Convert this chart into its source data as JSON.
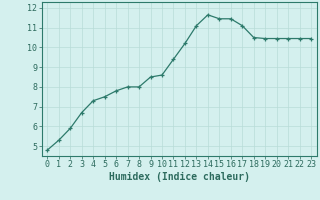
{
  "x": [
    0,
    1,
    2,
    3,
    4,
    5,
    6,
    7,
    8,
    9,
    10,
    11,
    12,
    13,
    14,
    15,
    16,
    17,
    18,
    19,
    20,
    21,
    22,
    23
  ],
  "y": [
    4.8,
    5.3,
    5.9,
    6.7,
    7.3,
    7.5,
    7.8,
    8.0,
    8.0,
    8.5,
    8.6,
    9.4,
    10.2,
    11.1,
    11.65,
    11.45,
    11.45,
    11.1,
    10.5,
    10.45,
    10.45,
    10.45,
    10.45,
    10.45
  ],
  "line_color": "#2d7a6b",
  "marker": "+",
  "bg_color": "#d4f0ee",
  "grid_color": "#b8dcd8",
  "xlabel": "Humidex (Indice chaleur)",
  "ylim": [
    4.5,
    12.3
  ],
  "xlim": [
    -0.5,
    23.5
  ],
  "yticks": [
    5,
    6,
    7,
    8,
    9,
    10,
    11,
    12
  ],
  "xticks": [
    0,
    1,
    2,
    3,
    4,
    5,
    6,
    7,
    8,
    9,
    10,
    11,
    12,
    13,
    14,
    15,
    16,
    17,
    18,
    19,
    20,
    21,
    22,
    23
  ],
  "font_color": "#2d6b5e",
  "label_fontsize": 7.0,
  "tick_fontsize": 6.0
}
